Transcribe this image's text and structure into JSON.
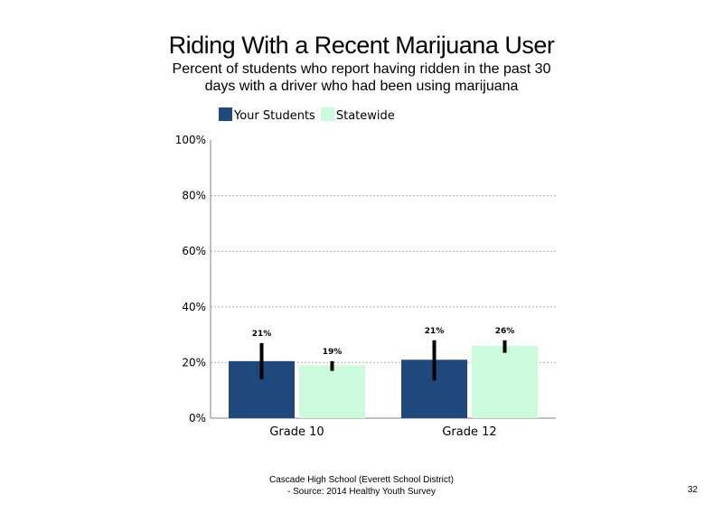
{
  "page": {
    "footer_line1": "Cascade High School (Everett School District)",
    "footer_line2": "- Source: 2014 Healthy Youth Survey",
    "page_number": "32"
  },
  "chart_data": {
    "type": "bar",
    "title": "Riding With a Recent Marijuana User",
    "subtitle": "Percent of students who report having ridden in the past 30 days with a driver who had been using marijuana",
    "categories": [
      "Grade 10",
      "Grade 12"
    ],
    "series": [
      {
        "name": "Your Students",
        "color": "#1f497d",
        "values": [
          20.5,
          21
        ],
        "labels": [
          "21%",
          "21%"
        ],
        "error_low": [
          14,
          13.5
        ],
        "error_high": [
          27,
          28
        ]
      },
      {
        "name": "Statewide",
        "color": "#ccfadc",
        "values": [
          19,
          26
        ],
        "labels": [
          "19%",
          "26%"
        ],
        "error_low": [
          17,
          23.5
        ],
        "error_high": [
          20.5,
          28
        ]
      }
    ],
    "ylim": [
      0,
      100
    ],
    "yticks": [
      0,
      20,
      40,
      60,
      80,
      100
    ],
    "ytick_labels": [
      "0%",
      "20%",
      "40%",
      "60%",
      "80%",
      "100%"
    ],
    "xlabel": "",
    "ylabel": "",
    "grid": true,
    "legend_position": "top-left",
    "colors": {
      "gridline": "#b0b0b0",
      "axis": "#808080",
      "error_bar": "#000000"
    }
  }
}
